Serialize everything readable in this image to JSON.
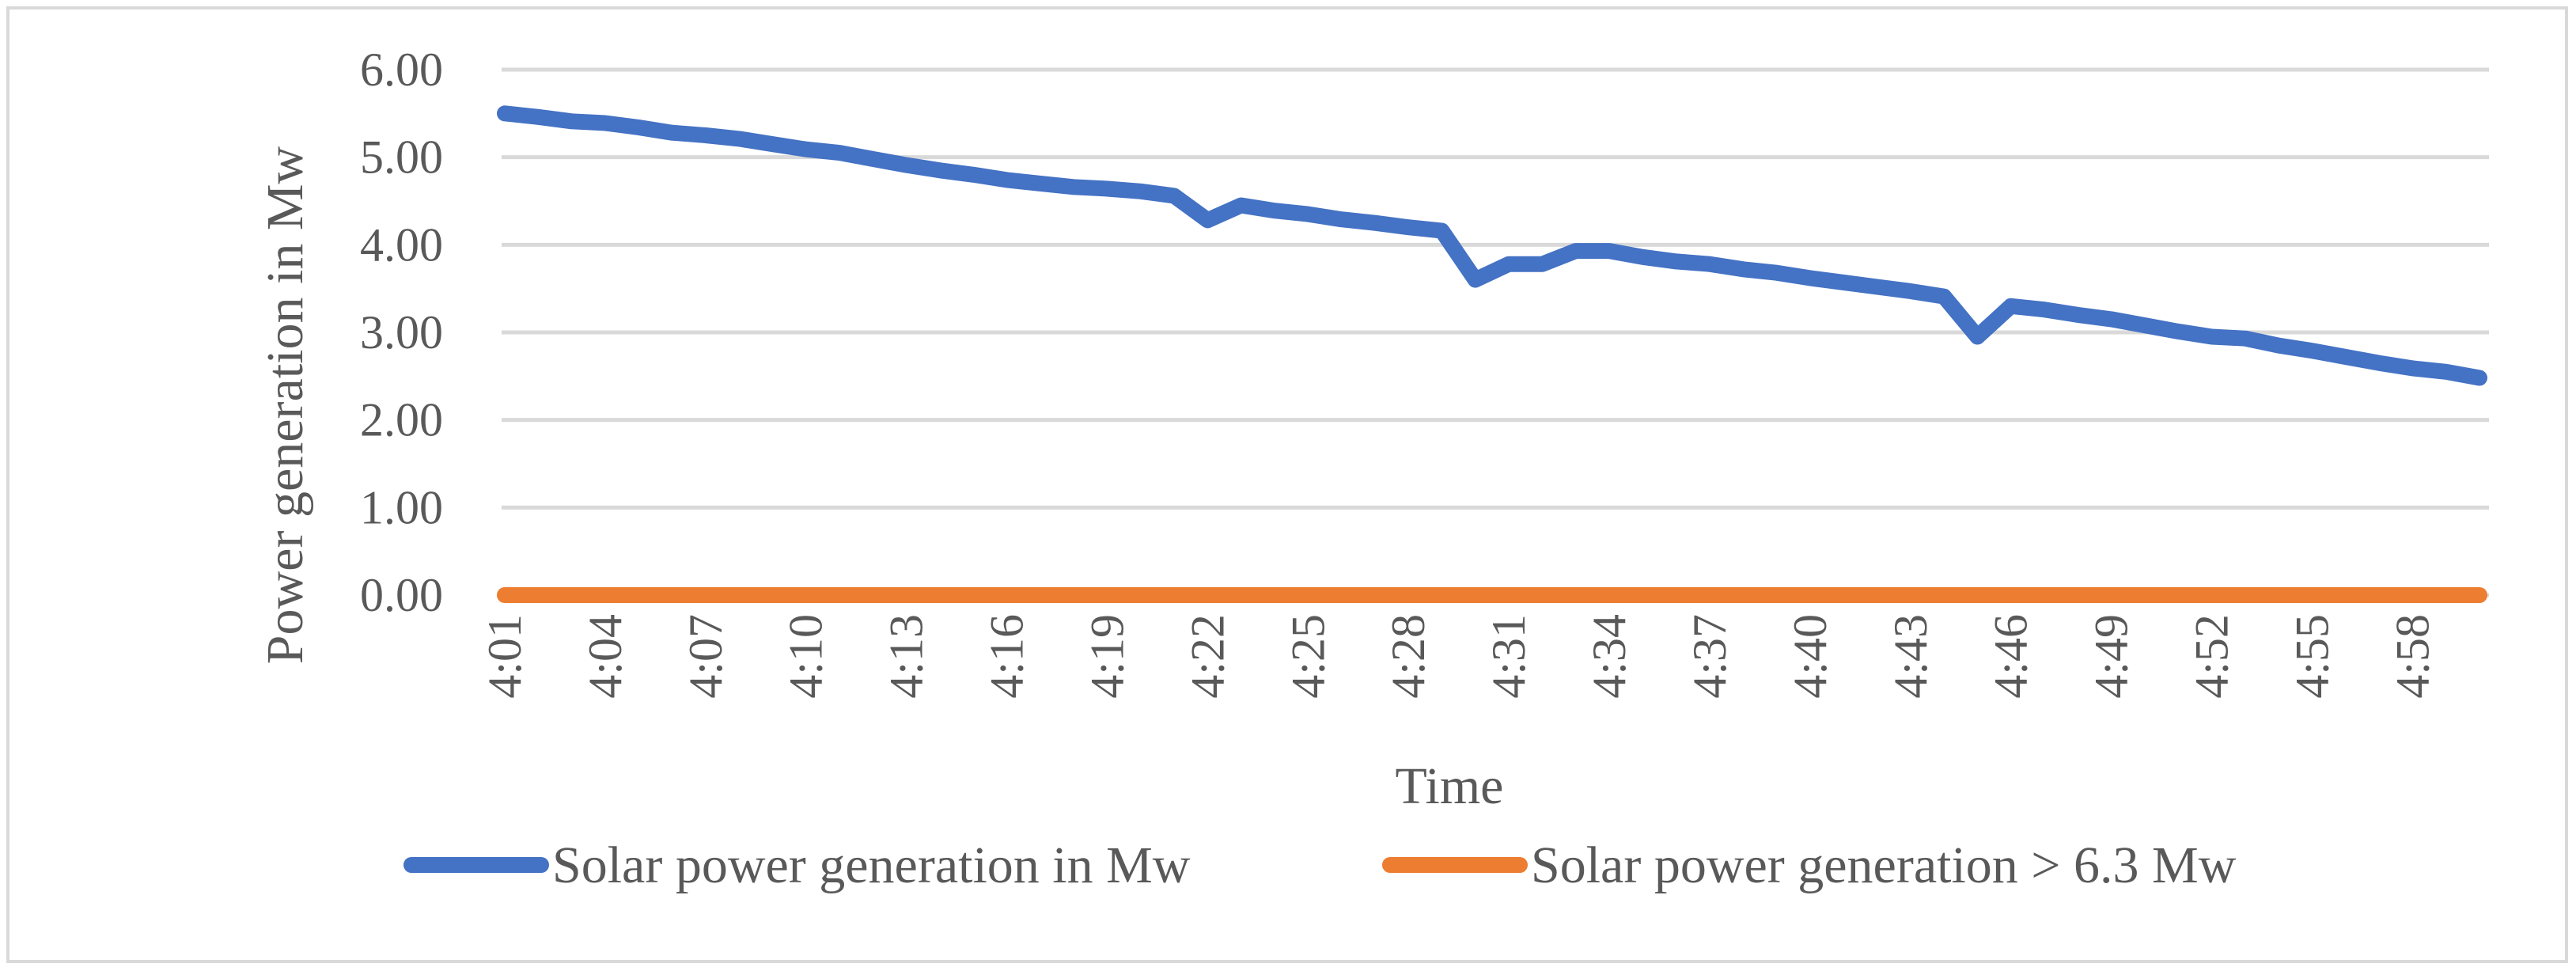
{
  "chart_data": {
    "type": "line",
    "title": "",
    "xlabel": "Time",
    "ylabel": "Power generation in Mw",
    "ylim": [
      0,
      6
    ],
    "yticks": [
      "0.00",
      "1.00",
      "2.00",
      "3.00",
      "4.00",
      "5.00",
      "6.00"
    ],
    "grid": true,
    "legend_position": "bottom",
    "categories": [
      "4:01",
      "4:02",
      "4:03",
      "4:04",
      "4:05",
      "4:06",
      "4:07",
      "4:08",
      "4:09",
      "4:10",
      "4:11",
      "4:12",
      "4:13",
      "4:14",
      "4:15",
      "4:16",
      "4:17",
      "4:18",
      "4:19",
      "4:20",
      "4:21",
      "4:22",
      "4:23",
      "4:24",
      "4:25",
      "4:26",
      "4:27",
      "4:28",
      "4:29",
      "4:30",
      "4:31",
      "4:32",
      "4:33",
      "4:34",
      "4:35",
      "4:36",
      "4:37",
      "4:38",
      "4:39",
      "4:40",
      "4:41",
      "4:42",
      "4:43",
      "4:44",
      "4:45",
      "4:46",
      "4:47",
      "4:48",
      "4:49",
      "4:50",
      "4:51",
      "4:52",
      "4:53",
      "4:54",
      "4:55",
      "4:56",
      "4:57",
      "4:58",
      "4:59",
      "5:00"
    ],
    "tick_labels": [
      "4:01",
      "4:04",
      "4:07",
      "4:10",
      "4:13",
      "4:16",
      "4:19",
      "4:22",
      "4:25",
      "4:28",
      "4:31",
      "4:34",
      "4:37",
      "4:40",
      "4:43",
      "4:46",
      "4:49",
      "4:52",
      "4:55",
      "4:58"
    ],
    "series": [
      {
        "name": "Solar power generation in Mw",
        "color": "#4472c4",
        "values": [
          5.5,
          5.46,
          5.41,
          5.39,
          5.34,
          5.28,
          5.25,
          5.21,
          5.15,
          5.09,
          5.05,
          4.98,
          4.91,
          4.85,
          4.8,
          4.74,
          4.7,
          4.66,
          4.64,
          4.61,
          4.56,
          4.28,
          4.45,
          4.39,
          4.35,
          4.29,
          4.25,
          4.2,
          4.16,
          3.6,
          3.78,
          3.78,
          3.93,
          3.93,
          3.86,
          3.81,
          3.78,
          3.72,
          3.68,
          3.62,
          3.57,
          3.52,
          3.47,
          3.41,
          2.95,
          3.3,
          3.26,
          3.2,
          3.15,
          3.08,
          3.01,
          2.95,
          2.93,
          2.85,
          2.79,
          2.72,
          2.65,
          2.59,
          2.55,
          2.48
        ]
      },
      {
        "name": "Solar power generation > 6.3 Mw",
        "color": "#ed7d31",
        "values": [
          0,
          0,
          0,
          0,
          0,
          0,
          0,
          0,
          0,
          0,
          0,
          0,
          0,
          0,
          0,
          0,
          0,
          0,
          0,
          0,
          0,
          0,
          0,
          0,
          0,
          0,
          0,
          0,
          0,
          0,
          0,
          0,
          0,
          0,
          0,
          0,
          0,
          0,
          0,
          0,
          0,
          0,
          0,
          0,
          0,
          0,
          0,
          0,
          0,
          0,
          0,
          0,
          0,
          0,
          0,
          0,
          0,
          0,
          0,
          0
        ]
      }
    ]
  }
}
